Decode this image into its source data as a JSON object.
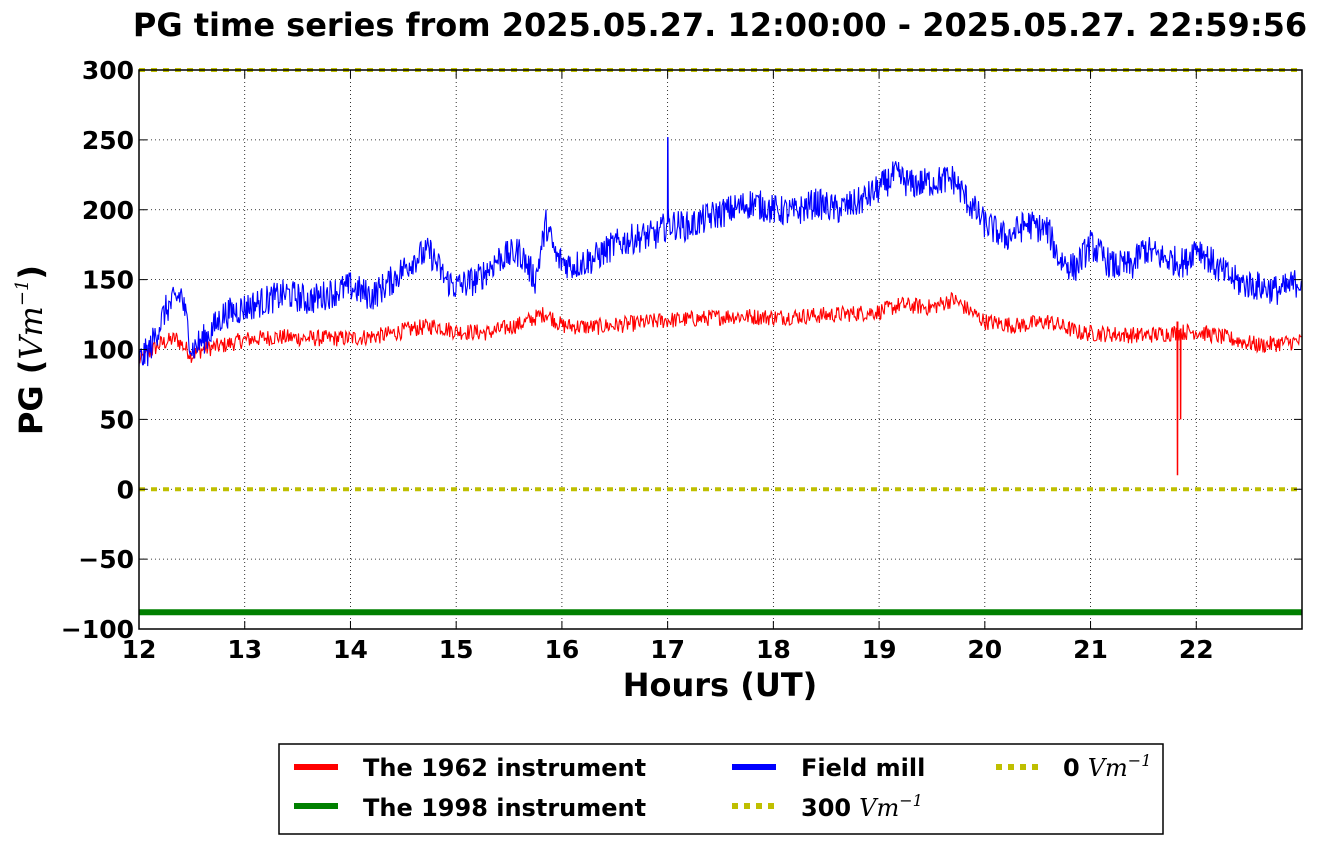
{
  "chart_data": {
    "type": "line",
    "title": "PG time series from 2025.05.27. 12:00:00 - 2025.05.27. 22:59:56",
    "xlabel": "Hours (UT)",
    "ylabel_text": "PG (",
    "ylabel_unit": "Vm",
    "ylabel_exp": "−1",
    "ylabel_close": ")",
    "xlim": [
      12,
      23
    ],
    "ylim": [
      -100,
      300
    ],
    "x_ticks": [
      12,
      13,
      14,
      15,
      16,
      17,
      18,
      19,
      20,
      21,
      22
    ],
    "x_tick_labels": [
      "12",
      "13",
      "14",
      "15",
      "16",
      "17",
      "18",
      "19",
      "20",
      "21",
      "22"
    ],
    "y_ticks": [
      300,
      250,
      200,
      150,
      100,
      50,
      0,
      -50,
      -100
    ],
    "y_tick_labels": [
      "300",
      "250",
      "200",
      "150",
      "100",
      "50",
      "0",
      "−50",
      "−100"
    ],
    "grid": true,
    "legend_position": "below",
    "series": [
      {
        "name": "The 1962 instrument",
        "color": "#ff0000",
        "x": [
          12.0,
          12.2,
          12.35,
          12.5,
          12.6,
          12.8,
          13.0,
          13.3,
          13.6,
          14.0,
          14.3,
          14.6,
          14.8,
          15.0,
          15.3,
          15.6,
          15.85,
          16.0,
          16.3,
          16.6,
          17.0,
          17.3,
          17.6,
          18.0,
          18.3,
          18.6,
          19.0,
          19.2,
          19.5,
          19.7,
          20.0,
          20.3,
          20.6,
          20.9,
          21.2,
          21.5,
          21.8,
          22.0,
          22.3,
          22.6,
          23.0
        ],
        "values": [
          92,
          104,
          108,
          96,
          100,
          103,
          107,
          109,
          108,
          108,
          110,
          115,
          117,
          113,
          112,
          118,
          126,
          117,
          116,
          118,
          121,
          122,
          124,
          123,
          124,
          125,
          127,
          132,
          130,
          136,
          120,
          117,
          120,
          112,
          111,
          110,
          112,
          113,
          108,
          103,
          106
        ],
        "spikes": [
          {
            "x": 21.82,
            "values": [
              120,
              10,
              120
            ]
          },
          {
            "x": 21.85,
            "values": [
              115,
              50,
              115
            ]
          }
        ]
      },
      {
        "name": "The 1998 instrument",
        "color": "#008000",
        "x": [
          12.0,
          23.0
        ],
        "values": [
          -88,
          -88
        ]
      },
      {
        "name": "Field mill",
        "color": "#0000ff",
        "x": [
          12.0,
          12.1,
          12.25,
          12.4,
          12.5,
          12.65,
          12.8,
          13.0,
          13.2,
          13.4,
          13.6,
          13.8,
          14.0,
          14.2,
          14.4,
          14.6,
          14.75,
          14.9,
          15.0,
          15.2,
          15.4,
          15.6,
          15.75,
          15.85,
          15.95,
          16.1,
          16.3,
          16.5,
          16.7,
          16.9,
          17.0,
          17.2,
          17.4,
          17.6,
          17.8,
          18.0,
          18.2,
          18.4,
          18.6,
          18.8,
          19.0,
          19.15,
          19.3,
          19.5,
          19.7,
          19.85,
          20.0,
          20.2,
          20.4,
          20.6,
          20.7,
          20.85,
          21.0,
          21.2,
          21.4,
          21.5,
          21.7,
          21.9,
          22.0,
          22.2,
          22.4,
          22.6,
          22.8,
          23.0
        ],
        "values": [
          92,
          100,
          128,
          140,
          100,
          110,
          125,
          130,
          135,
          140,
          135,
          140,
          145,
          138,
          150,
          165,
          170,
          150,
          145,
          150,
          165,
          170,
          150,
          190,
          165,
          160,
          165,
          175,
          180,
          182,
          190,
          188,
          195,
          200,
          205,
          200,
          198,
          205,
          200,
          205,
          215,
          225,
          218,
          220,
          222,
          205,
          190,
          180,
          190,
          185,
          165,
          158,
          175,
          160,
          160,
          172,
          165,
          162,
          175,
          158,
          148,
          145,
          142,
          150
        ],
        "spikes": [
          {
            "x": 17.0,
            "values": [
              190,
              252,
              195
            ]
          }
        ]
      },
      {
        "name": "300 Vm⁻¹",
        "color": "#bfbf00",
        "x": [
          12.0,
          23.0
        ],
        "values": [
          300,
          300
        ]
      },
      {
        "name": "0 Vm⁻¹",
        "color": "#bfbf00",
        "x": [
          12.0,
          23.0
        ],
        "values": [
          0,
          0
        ]
      }
    ],
    "legend": [
      {
        "label": "The 1962 instrument",
        "color": "#ff0000",
        "style": "solid"
      },
      {
        "label": "The 1998 instrument",
        "color": "#008000",
        "style": "solid"
      },
      {
        "label": "Field mill",
        "color": "#0000ff",
        "style": "solid"
      },
      {
        "label_num": "300",
        "label_unit": "Vm",
        "label_exp": "−1",
        "color": "#bfbf00",
        "style": "dotted"
      },
      {
        "label_num": "0",
        "label_unit": "Vm",
        "label_exp": "−1",
        "color": "#bfbf00",
        "style": "dotted"
      }
    ]
  }
}
